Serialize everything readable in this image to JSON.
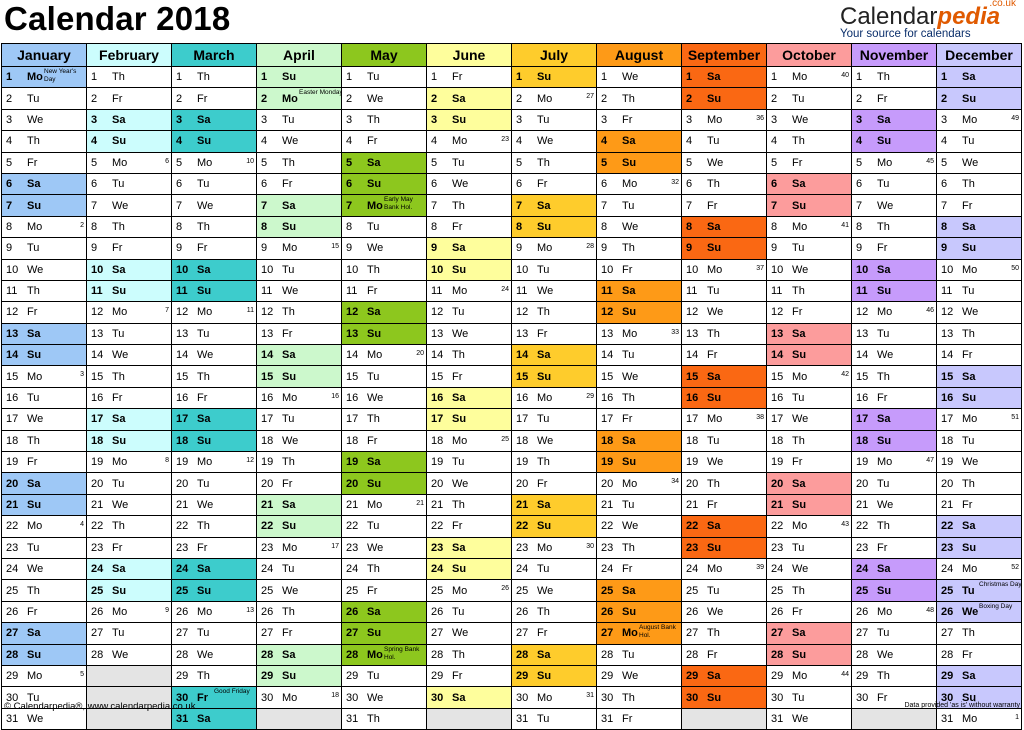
{
  "header": {
    "title": "Calendar 2018",
    "brand_name_1": "Calendar",
    "brand_name_2": "pedia",
    "brand_suffix": ".co.uk",
    "brand_tagline": "Your source for calendars"
  },
  "footer": {
    "copyright": "© Calendarpedia®, www.calendarpedia.co.uk",
    "disclaimer": "Data provided 'as is' without warranty"
  },
  "months": [
    {
      "name": "January",
      "bg": "#9ec8f6",
      "weekend": "#9ec8f6",
      "start": 1,
      "days": 31,
      "weeks": {
        "8": "2",
        "15": "3",
        "22": "4",
        "29": "5"
      },
      "holidays": {
        "1": "New Year's Day"
      }
    },
    {
      "name": "February",
      "bg": "#ccfdfd",
      "weekend": "#ccfdfd",
      "start": 4,
      "days": 28,
      "weeks": {
        "5": "6",
        "12": "7",
        "19": "8",
        "26": "9"
      },
      "holidays": {}
    },
    {
      "name": "March",
      "bg": "#3dcccc",
      "weekend": "#3dcccc",
      "start": 4,
      "days": 31,
      "weeks": {
        "5": "10",
        "12": "11",
        "19": "12",
        "26": "13"
      },
      "holidays": {
        "30": "Good Friday"
      }
    },
    {
      "name": "April",
      "bg": "#ccf8cc",
      "weekend": "#ccf8cc",
      "start": 0,
      "days": 30,
      "weeks": {
        "9": "15",
        "16": "16",
        "23": "17",
        "30": "18"
      },
      "holidays": {
        "2": "Easter Monday"
      }
    },
    {
      "name": "May",
      "bg": "#8dc71e",
      "weekend": "#8dc71e",
      "start": 2,
      "days": 31,
      "weeks": {
        "14": "20",
        "21": "21"
      },
      "holidays": {
        "7": "Early May Bank Hol.",
        "28": "Spring Bank Hol."
      }
    },
    {
      "name": "June",
      "bg": "#fefe9c",
      "weekend": "#fefe9c",
      "start": 5,
      "days": 30,
      "weeks": {
        "4": "23",
        "11": "24",
        "18": "25",
        "25": "26"
      },
      "holidays": {}
    },
    {
      "name": "July",
      "bg": "#fecc2c",
      "weekend": "#fecc2c",
      "start": 0,
      "days": 31,
      "weeks": {
        "2": "27",
        "9": "28",
        "16": "29",
        "23": "30",
        "30": "31"
      },
      "holidays": {}
    },
    {
      "name": "August",
      "bg": "#fe9a17",
      "weekend": "#fe9a17",
      "start": 3,
      "days": 31,
      "weeks": {
        "6": "32",
        "13": "33",
        "20": "34"
      },
      "holidays": {
        "27": "August Bank Hol."
      }
    },
    {
      "name": "September",
      "bg": "#fa6813",
      "weekend": "#fa6813",
      "start": 6,
      "days": 30,
      "weeks": {
        "3": "36",
        "10": "37",
        "17": "38",
        "24": "39"
      },
      "holidays": {}
    },
    {
      "name": "October",
      "bg": "#fc9c9c",
      "weekend": "#fc9c9c",
      "start": 1,
      "days": 31,
      "weeks": {
        "1": "40",
        "8": "41",
        "15": "42",
        "22": "43",
        "29": "44"
      },
      "holidays": {}
    },
    {
      "name": "November",
      "bg": "#c69bfb",
      "weekend": "#c69bfb",
      "start": 4,
      "days": 30,
      "weeks": {
        "5": "45",
        "12": "46",
        "19": "47",
        "26": "48"
      },
      "holidays": {}
    },
    {
      "name": "December",
      "bg": "#c8c8fd",
      "weekend": "#c8c8fd",
      "start": 6,
      "days": 31,
      "weeks": {
        "3": "49",
        "10": "50",
        "17": "51",
        "24": "52",
        "31": "1"
      },
      "holidays": {
        "25": "Christmas Day",
        "26": "Boxing Day"
      }
    }
  ],
  "weekday_abbr": [
    "Su",
    "Mo",
    "Tu",
    "We",
    "Th",
    "Fr",
    "Sa"
  ]
}
